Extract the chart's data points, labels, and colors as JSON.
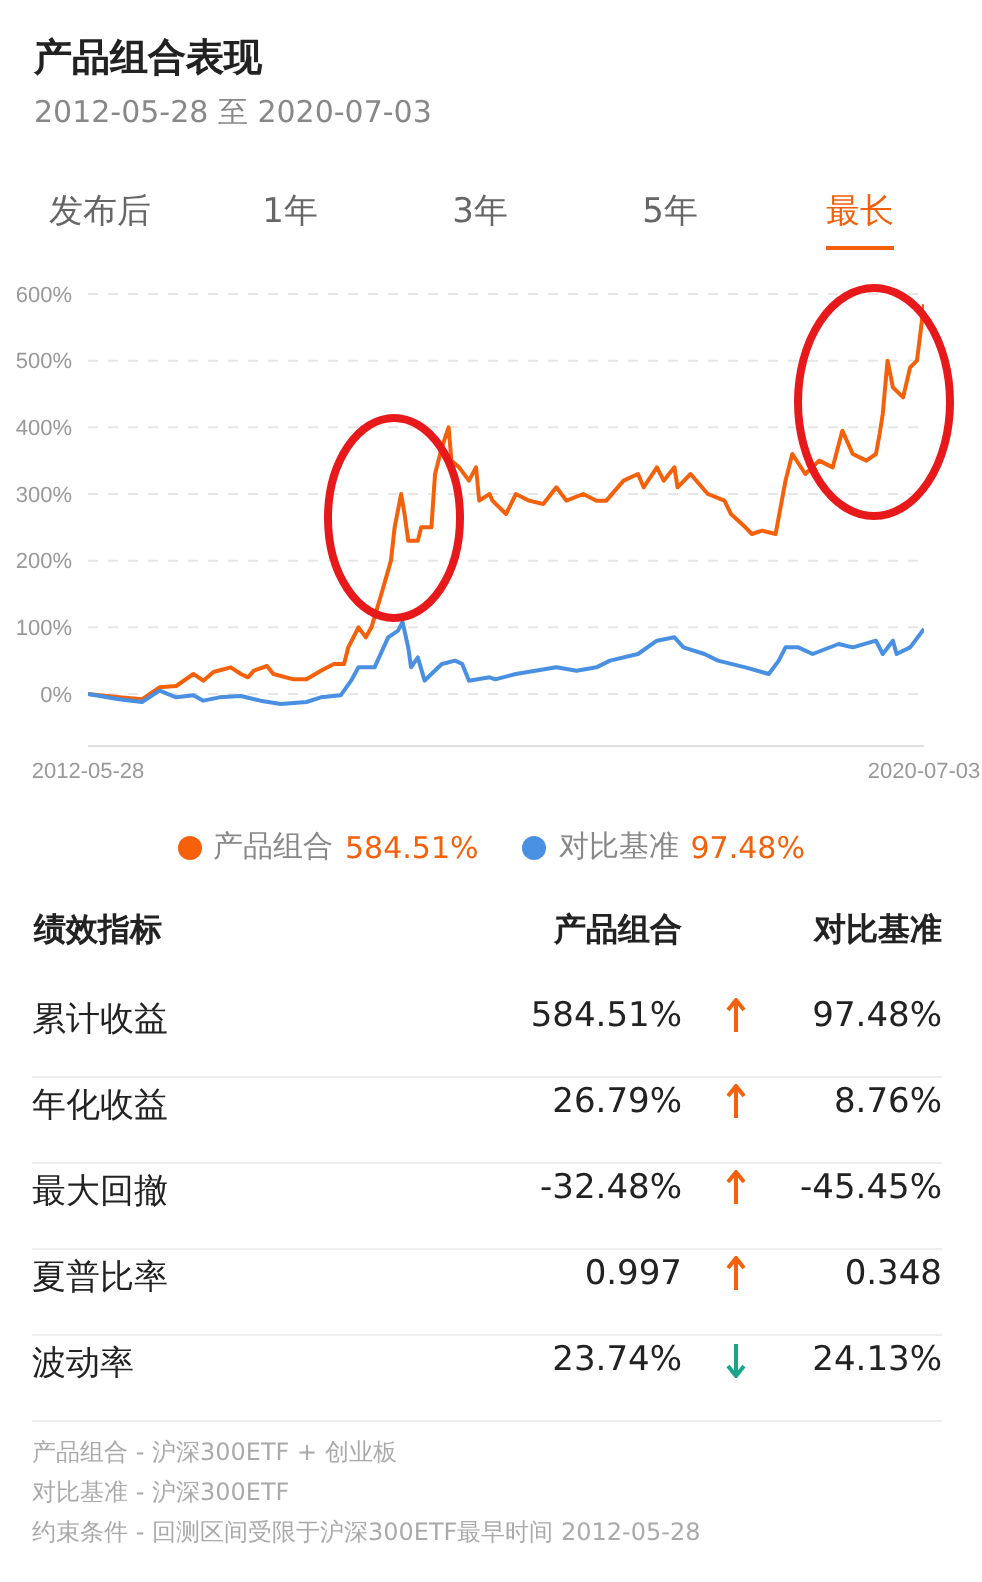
{
  "chart_data": [
    {
      "type": "line",
      "title": "产品组合表现",
      "subtitle": "2012-05-28 至 2020-07-03",
      "xlim": [
        "2012-05-28",
        "2020-07-03"
      ],
      "xticks": [
        "2012-05-28",
        "2020-07-03"
      ],
      "ylim": [
        -78,
        600
      ],
      "yticks": [
        {
          "value": 0,
          "label": "0%"
        },
        {
          "value": 100,
          "label": "100%"
        },
        {
          "value": 200,
          "label": "200%"
        },
        {
          "value": 300,
          "label": "300%"
        },
        {
          "value": 400,
          "label": "400%"
        },
        {
          "value": 500,
          "label": "500%"
        },
        {
          "value": 600,
          "label": "600%"
        }
      ],
      "grid": "y",
      "legend": "bottom",
      "marker": "none",
      "line_style": "solid",
      "annotations": [
        "发布后",
        "1年",
        "3年",
        "5年",
        "最长",
        "584.51%",
        "97.48%"
      ],
      "series": [
        {
          "name": "产品组合",
          "color": "#f5600a",
          "x": [
            "2012-05-28",
            "2012-09-15",
            "2012-12-05",
            "2013-02-05",
            "2013-04-05",
            "2013-06-05",
            "2013-07-10",
            "2013-08-15",
            "2013-10-15",
            "2013-11-20",
            "2013-12-15",
            "2014-01-05",
            "2014-02-20",
            "2014-03-15",
            "2014-05-25",
            "2014-07-10",
            "2014-08-30",
            "2014-10-15",
            "2014-11-20",
            "2014-12-05",
            "2015-01-10",
            "2015-02-05",
            "2015-02-25",
            "2015-04-01",
            "2015-05-05",
            "2015-05-18",
            "2015-06-10",
            "2015-06-22",
            "2015-07-05",
            "2015-08-08",
            "2015-08-20",
            "2015-09-25",
            "2015-10-08",
            "2015-11-01",
            "2015-11-25",
            "2015-12-05",
            "2016-01-01",
            "2016-02-05",
            "2016-03-01",
            "2016-03-12",
            "2016-04-18",
            "2016-04-28",
            "2016-06-15",
            "2016-07-20",
            "2016-09-05",
            "2016-10-25",
            "2016-12-10",
            "2017-01-15",
            "2017-03-15",
            "2017-05-01",
            "2017-06-05",
            "2017-08-05",
            "2017-09-25",
            "2017-10-15",
            "2017-12-01",
            "2017-12-25",
            "2018-02-01",
            "2018-02-12",
            "2018-03-30",
            "2018-05-30",
            "2018-07-28",
            "2018-08-20",
            "2018-10-10",
            "2018-11-02",
            "2018-12-08",
            "2019-01-25",
            "2019-03-01",
            "2019-03-25",
            "2019-05-10",
            "2019-06-28",
            "2019-08-15",
            "2019-09-18",
            "2019-10-25",
            "2019-12-12",
            "2020-01-15",
            "2020-01-28",
            "2020-02-08",
            "2020-02-25",
            "2020-03-15",
            "2020-04-20",
            "2020-05-15",
            "2020-06-08",
            "2020-07-03"
          ],
          "values": [
            0,
            -5,
            -8,
            10,
            12,
            30,
            20,
            33,
            40,
            30,
            25,
            35,
            42,
            30,
            22,
            22,
            35,
            45,
            45,
            70,
            100,
            85,
            100,
            150,
            200,
            250,
            300,
            270,
            230,
            230,
            250,
            250,
            330,
            370,
            400,
            350,
            340,
            320,
            340,
            290,
            300,
            290,
            270,
            300,
            290,
            285,
            310,
            290,
            300,
            290,
            290,
            320,
            330,
            310,
            340,
            320,
            340,
            310,
            330,
            300,
            290,
            270,
            250,
            240,
            245,
            240,
            320,
            360,
            330,
            350,
            340,
            395,
            360,
            350,
            360,
            390,
            420,
            500,
            460,
            445,
            490,
            500,
            584.51
          ]
        },
        {
          "name": "对比基准",
          "color": "#4a90e2",
          "x": [
            "2012-05-28",
            "2012-09-15",
            "2012-12-05",
            "2013-02-05",
            "2013-04-05",
            "2013-06-05",
            "2013-07-10",
            "2013-09-05",
            "2013-11-20",
            "2014-01-28",
            "2014-04-10",
            "2014-07-10",
            "2014-08-30",
            "2014-11-08",
            "2014-12-15",
            "2015-01-10",
            "2015-03-08",
            "2015-04-25",
            "2015-05-30",
            "2015-06-15",
            "2015-07-05",
            "2015-07-15",
            "2015-08-08",
            "2015-09-01",
            "2015-09-25",
            "2015-11-01",
            "2015-12-18",
            "2016-01-12",
            "2016-02-05",
            "2016-04-18",
            "2016-05-08",
            "2016-07-20",
            "2016-12-10",
            "2017-02-20",
            "2017-05-01",
            "2017-06-18",
            "2017-09-25",
            "2017-12-01",
            "2018-02-01",
            "2018-03-05",
            "2018-05-18",
            "2018-07-05",
            "2018-10-10",
            "2019-01-01",
            "2019-02-05",
            "2019-03-01",
            "2019-04-15",
            "2019-06-05",
            "2019-09-05",
            "2019-10-25",
            "2020-01-15",
            "2020-02-08",
            "2020-03-15",
            "2020-03-28",
            "2020-05-15",
            "2020-07-03"
          ],
          "values": [
            0,
            -8,
            -12,
            5,
            -5,
            -2,
            -10,
            -5,
            -3,
            -10,
            -15,
            -12,
            -5,
            -2,
            20,
            40,
            40,
            85,
            95,
            108,
            70,
            40,
            55,
            20,
            30,
            45,
            50,
            45,
            20,
            25,
            22,
            30,
            40,
            35,
            40,
            50,
            60,
            80,
            85,
            70,
            60,
            50,
            40,
            30,
            50,
            70,
            70,
            60,
            75,
            70,
            80,
            60,
            80,
            60,
            70,
            97.48
          ]
        }
      ]
    },
    {
      "type": "other",
      "title": "绩效指标",
      "categories": [
        "累计收益",
        "年化收益",
        "最大回撤",
        "夏普比率",
        "波动率"
      ],
      "series": [
        {
          "name": "产品组合",
          "values": [
            584.51,
            26.79,
            -32.48,
            0.997,
            23.74
          ],
          "value_labels": [
            "584.51%",
            "26.79%",
            "-32.48%",
            "0.997",
            "23.74%"
          ]
        },
        {
          "name": "对比基准",
          "values": [
            97.48,
            8.76,
            -45.45,
            0.348,
            24.13
          ],
          "value_labels": [
            "97.48%",
            "8.76%",
            "-45.45%",
            "0.348",
            "24.13%"
          ]
        }
      ],
      "annotations": [
        "产品组合 - 沪深300ETF + 创业板",
        "对比基准 - 沪深300ETF",
        "约束条件 - 回测区间受限于沪深300ETF最早时间 2012-05-28"
      ]
    }
  ]
}
